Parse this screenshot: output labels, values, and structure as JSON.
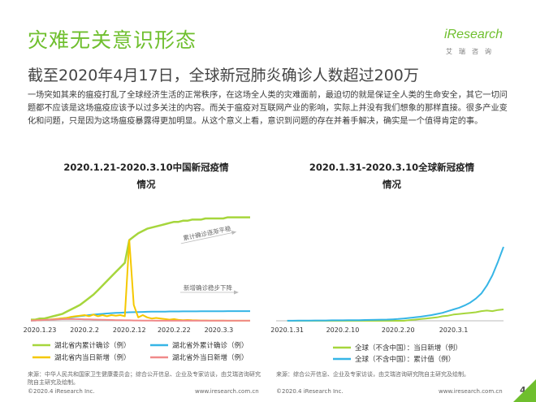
{
  "header": {
    "title": "灾难无关意识形态",
    "subtitle": "截至2020年4月17日，全球新冠肺炎确诊人数超过200万",
    "logo_text": "iResearch",
    "logo_sub": "艾瑞咨询"
  },
  "body_text": "一场突如其来的瘟疫打乱了全球经济生活的正常秩序，在这场全人类的灾难面前，最迫切的就是保证全人类的生命安全，其它一切问题都不应该是这场瘟疫应该予以过多关注的内容。而关于瘟疫对互联网产业的影响，实际上并没有我们想象的那样直接。很多产业变化和问题，只是因为这场瘟疫暴露得更加明显。从这个意义上看，意识到问题的存在并着手解决，确实是一个值得肯定的事。",
  "colors": {
    "green": "#6fbf2e",
    "light_green": "#a6d63c",
    "cyan": "#36b5e6",
    "yellow": "#f5c800",
    "pink": "#f08a8a"
  },
  "chart_data": [
    {
      "type": "line",
      "title": "2020.1.21-2020.3.10中国新冠疫情情况",
      "title_line1": "2020.1.21-2020.3.10中国新冠疫情",
      "title_line2": "情况",
      "x_ticks": [
        "2020.1.23",
        "2020.2.2",
        "2020.2.12",
        "2020.2.22",
        "2020.3.3"
      ],
      "x_tick_index": [
        2,
        12,
        22,
        32,
        42
      ],
      "x_range": [
        0,
        49
      ],
      "y_range": [
        0,
        100
      ],
      "annotations": [
        {
          "text": "累计确诊逐渐平稳",
          "target_series": 0
        },
        {
          "text": "新增确诊稳步下降",
          "target_series": 2
        }
      ],
      "series": [
        {
          "name": "湖北省内累计确诊（例）",
          "color": "#a6d63c",
          "values": [
            1,
            1,
            2,
            2,
            3,
            4,
            5,
            6,
            8,
            10,
            12,
            14,
            17,
            20,
            23,
            27,
            31,
            35,
            39,
            43,
            47,
            51,
            71,
            74,
            77,
            79,
            81,
            82,
            83,
            84,
            85,
            86,
            87,
            87,
            88,
            88,
            89,
            89,
            89,
            90,
            90,
            90,
            90,
            90,
            91,
            91,
            91,
            91,
            91,
            91
          ]
        },
        {
          "name": "湖北省外累计确诊（例）",
          "color": "#36b5e6",
          "values": [
            0.2,
            0.3,
            0.5,
            0.7,
            1,
            1.3,
            1.7,
            2.1,
            2.6,
            3.1,
            3.6,
            4.1,
            4.6,
            5,
            5.4,
            5.8,
            6.1,
            6.4,
            6.7,
            6.9,
            7.1,
            7.3,
            7.5,
            7.6,
            7.7,
            7.8,
            7.9,
            8,
            8,
            8.1,
            8.1,
            8.2,
            8.2,
            8.2,
            8.3,
            8.3,
            8.3,
            8.3,
            8.4,
            8.4,
            8.4,
            8.4,
            8.4,
            8.4,
            8.5,
            8.5,
            8.5,
            8.5,
            8.5,
            8.5
          ]
        },
        {
          "name": "湖北省内当日新增（例）",
          "color": "#f5c800",
          "values": [
            0.3,
            0.4,
            0.6,
            0.8,
            1,
            1.4,
            1.8,
            2.2,
            2.5,
            3.5,
            4,
            4.5,
            5,
            4,
            5.5,
            4,
            5,
            4,
            5,
            4.5,
            5,
            4,
            71,
            14,
            3,
            5,
            3,
            2,
            2.5,
            2,
            1.5,
            1,
            1.5,
            0.8,
            0.6,
            0.7,
            0.5,
            0.4,
            0.3,
            0.3,
            0.2,
            0.2,
            0.2,
            0.2,
            0.1,
            0.1,
            0.1,
            0.1,
            0.1,
            0.1
          ]
        },
        {
          "name": "湖北省外当日新增（例）",
          "color": "#f08a8a",
          "values": [
            0.2,
            0.3,
            0.5,
            0.7,
            0.9,
            1.1,
            1.3,
            1.4,
            1.5,
            1.5,
            1.5,
            1.4,
            1.3,
            1.2,
            1.1,
            1,
            0.9,
            0.8,
            0.7,
            0.6,
            0.5,
            0.4,
            0.4,
            0.3,
            0.3,
            0.2,
            0.2,
            0.2,
            0.1,
            0.1,
            0.1,
            0.1,
            0.1,
            0.1,
            0.1,
            0.1,
            0.1,
            0.1,
            0.1,
            0.1,
            0.1,
            0.1,
            0.1,
            0.1,
            0.1,
            0.1,
            0.1,
            0.1,
            0.1,
            0.1
          ]
        }
      ]
    },
    {
      "type": "line",
      "title": "2020.1.31-2020.3.10全球新冠疫情情况",
      "title_line1": "2020.1.31-2020.3.10全球新冠疫情",
      "title_line2": "情况",
      "x_ticks": [
        "2020.1.31",
        "2020.2.10",
        "2020.2.20",
        "2020.3.1"
      ],
      "x_tick_index": [
        0,
        10,
        20,
        30
      ],
      "x_range": [
        -2,
        39
      ],
      "y_range": [
        0,
        100
      ],
      "series": [
        {
          "name": "全球（不含中国）：当日新增（例）",
          "color": "#a6d63c",
          "values": [
            0,
            0,
            0,
            0,
            0,
            0,
            0,
            0,
            0,
            0,
            0,
            0,
            0,
            0,
            0,
            0,
            0,
            0,
            0,
            0,
            0,
            0,
            0.5,
            1,
            1.5,
            2,
            2.5,
            3,
            4,
            4.5,
            5.5,
            6,
            6.5,
            7,
            7.5,
            8.5,
            9,
            8.5,
            9.5,
            10
          ]
        },
        {
          "name": "全球（不含中国）：累计值（例）",
          "color": "#36b5e6",
          "values": [
            0.1,
            0.1,
            0.2,
            0.2,
            0.2,
            0.3,
            0.3,
            0.3,
            0.4,
            0.4,
            0.4,
            0.5,
            0.5,
            0.6,
            0.7,
            0.8,
            0.9,
            1,
            1.1,
            1.3,
            1.6,
            2,
            2.5,
            3,
            3.6,
            4.3,
            5,
            6,
            7,
            8.5,
            10,
            11.5,
            13.5,
            16,
            19.5,
            24,
            31,
            40,
            52,
            65
          ]
        }
      ]
    }
  ],
  "sources": {
    "left": "来源：中华人民共和国家卫生健康委员会；综合公开信息、企业及专家访谈，由艾瑞咨询研究院自主研究及绘制。",
    "right": "来源：综合公开信息、企业及专家访谈，由艾瑞咨询研究院自主研究及绘制。"
  },
  "footer": {
    "left_copyright": "©2020.4 iResearch Inc.",
    "left_url": "www.iresearch.com.cn",
    "right_copyright": "©2020.4 iResearch Inc.",
    "right_url": "www.iresearch.com.cn",
    "page_number": "4"
  }
}
